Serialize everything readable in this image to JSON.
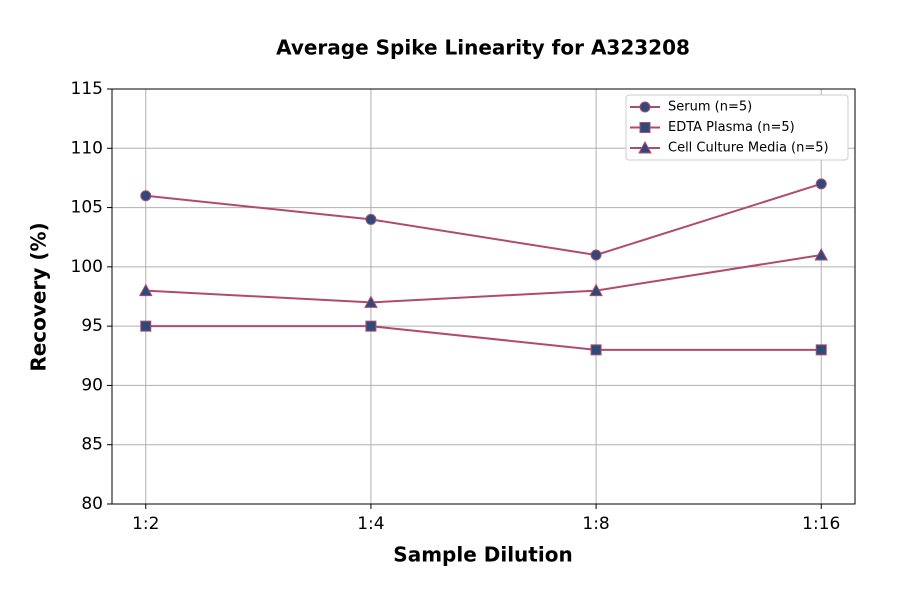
{
  "chart_data": {
    "type": "line",
    "title": "Average Spike Linearity for A323208",
    "x_label": "Sample Dilution",
    "y_label": "Recovery (%)",
    "categories": [
      "1:2",
      "1:4",
      "1:8",
      "1:16"
    ],
    "series": [
      {
        "name": "Serum (n=5)",
        "color": "#b04a6e",
        "marker_color": "#2e4a7a",
        "marker": "circle",
        "values": [
          106,
          104,
          101,
          107
        ]
      },
      {
        "name": "EDTA Plasma (n=5)",
        "color": "#b04a6e",
        "marker_color": "#2e4a7a",
        "marker": "square",
        "values": [
          95,
          95,
          93,
          93
        ]
      },
      {
        "name": "Cell Culture Media (n=5)",
        "color": "#b04a6e",
        "marker_color": "#2e4a7a",
        "marker": "triangle",
        "values": [
          98,
          97,
          98,
          101
        ]
      }
    ],
    "ylim": [
      80,
      115
    ],
    "yticks": [
      80,
      85,
      90,
      95,
      100,
      105,
      110,
      115
    ],
    "grid": true,
    "legend": "upper right"
  }
}
